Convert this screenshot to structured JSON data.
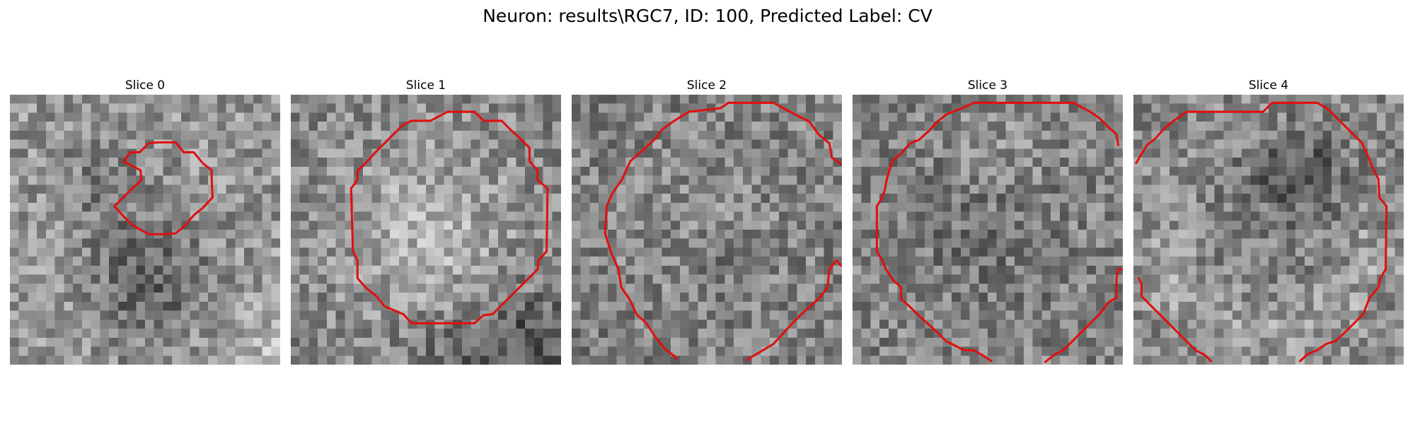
{
  "figure": {
    "title": "Neuron: results\\RGC7, ID: 100, Predicted Label: CV"
  },
  "colors": {
    "contour": "#e01010",
    "background": "#ffffff",
    "text": "#000000"
  },
  "slices": [
    {
      "title": "Slice 0",
      "seed": 11,
      "darkness": "dark lower half"
    },
    {
      "title": "Slice 1",
      "seed": 23,
      "darkness": "bright center"
    },
    {
      "title": "Slice 2",
      "seed": 37,
      "darkness": "mixed"
    },
    {
      "title": "Slice 3",
      "seed": 53,
      "darkness": "mixed"
    },
    {
      "title": "Slice 4",
      "seed": 71,
      "darkness": "dark upper center"
    }
  ]
}
